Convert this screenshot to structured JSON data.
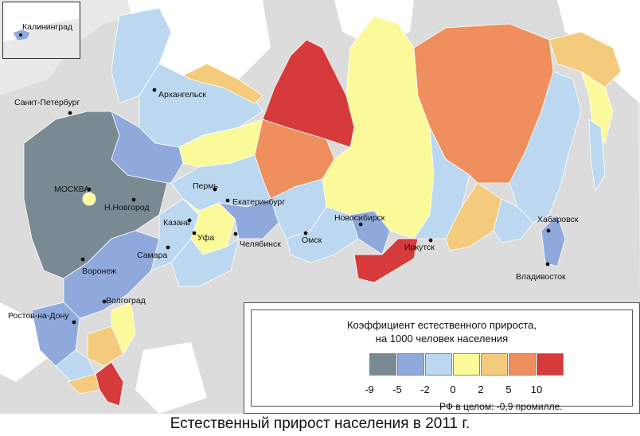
{
  "caption": "Естественный прирост населения в 2011 г.",
  "inset": {
    "label": "Калининград"
  },
  "cities": [
    {
      "name": "Санкт-Петербург"
    },
    {
      "name": "Архангельск"
    },
    {
      "name": "МОСКВА"
    },
    {
      "name": "Н.Новгород"
    },
    {
      "name": "Пермь"
    },
    {
      "name": "Казань"
    },
    {
      "name": "Екатеринбург"
    },
    {
      "name": "Уфа"
    },
    {
      "name": "Челябинск"
    },
    {
      "name": "Самара"
    },
    {
      "name": "Воронеж"
    },
    {
      "name": "Волгоград"
    },
    {
      "name": "Ростов-на-Дону"
    },
    {
      "name": "Омск"
    },
    {
      "name": "Новосибирск"
    },
    {
      "name": "Иркутск"
    },
    {
      "name": "Хабаровск"
    },
    {
      "name": "Владивосток"
    }
  ],
  "legend": {
    "title_line1": "Коэффициент естественного прироста,",
    "title_line2": "на 1000 человек населения",
    "colors": [
      "#7a8a93",
      "#8fa9dc",
      "#bcd8f0",
      "#fafa9a",
      "#f4cb7c",
      "#ee8f5d",
      "#d73a3a"
    ],
    "ticks": [
      "-9",
      "-5",
      "-2",
      "0",
      "2",
      "5",
      "10"
    ],
    "note": "РФ в целом:  -0,9 промилле."
  }
}
